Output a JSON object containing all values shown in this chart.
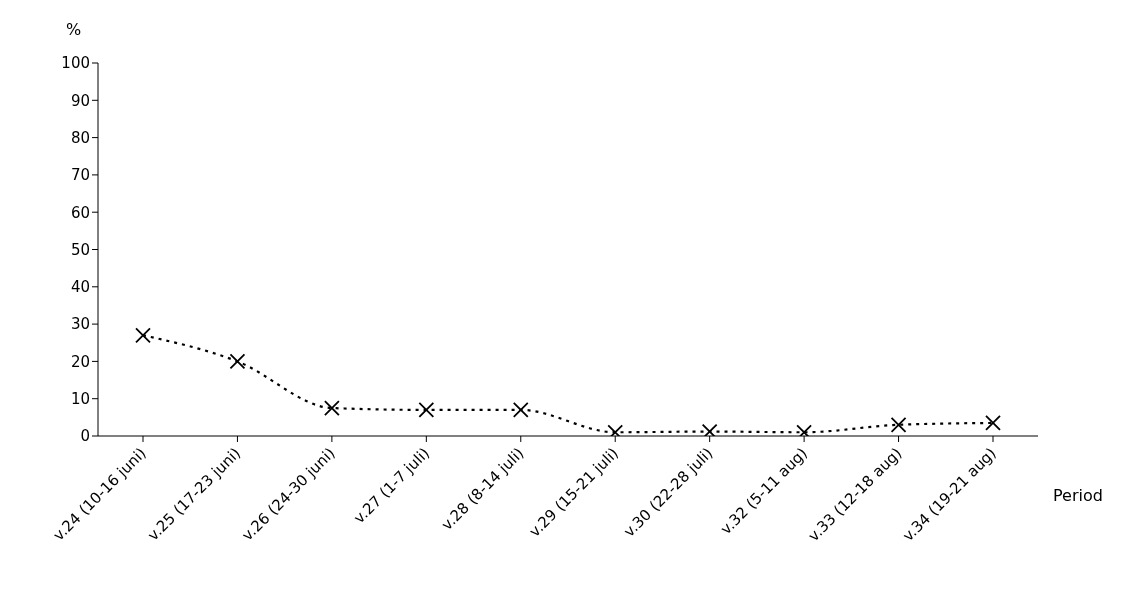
{
  "chart_data": {
    "type": "line",
    "ylabel": "%",
    "xlabel": "Period",
    "categories": [
      "v.24 (10-16 juni)",
      "v.25 (17-23 juni)",
      "v.26 (24-30 juni)",
      "v.27 (1-7 juli)",
      "v.28 (8-14 juli)",
      "v.29 (15-21 juli)",
      "v.30 (22-28 juli)",
      "v.32 (5-11 aug)",
      "v.33 (12-18 aug)",
      "v.34 (19-21 aug)"
    ],
    "series": [
      {
        "color": "#000000",
        "values": [
          27,
          20,
          7.5,
          7,
          7,
          1,
          1.2,
          1,
          3,
          3.5
        ]
      }
    ],
    "ylim": [
      0,
      100
    ],
    "yticks": [
      0,
      10,
      20,
      30,
      40,
      50,
      60,
      70,
      80,
      90,
      100
    ],
    "grid": false,
    "legend": false,
    "marker": "cross",
    "line_style": "dotted"
  }
}
